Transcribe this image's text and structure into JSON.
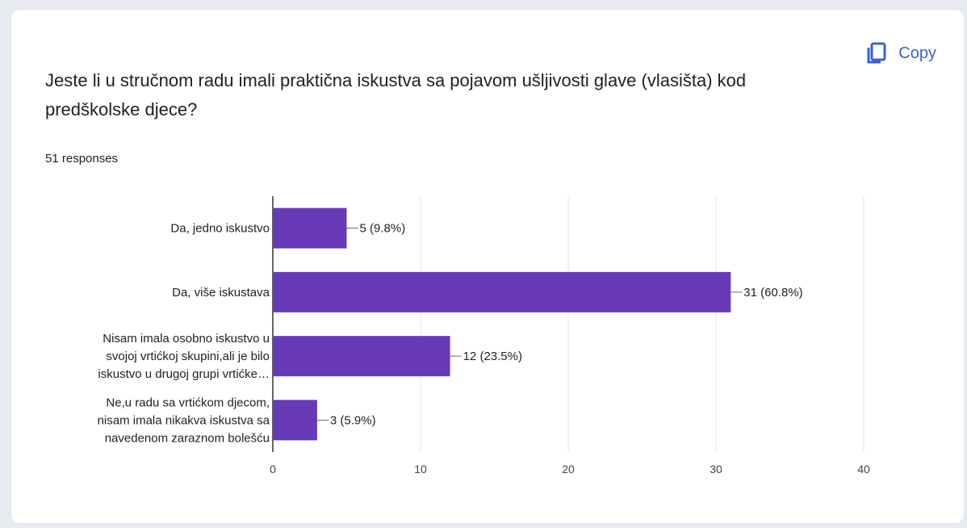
{
  "question": {
    "title": "Jeste li u stručnom radu imali praktična iskustva sa pojavom ušljivosti glave (vlasišta) kod predškolske djece?",
    "responses": "51 responses"
  },
  "toolbar": {
    "copy_label": "Copy",
    "copy_icon": "copy-icon"
  },
  "colors": {
    "bar": "#673ab7",
    "accent": "#3b5fd9"
  },
  "chart_data": {
    "type": "bar",
    "orientation": "horizontal",
    "categories": [
      [
        "Da, jedno iskustvo"
      ],
      [
        "Da, više iskustava"
      ],
      [
        "Nisam imala osobno iskustvo u",
        "svojoj vrtićkoj skupini,ali je bilo",
        "iskustvo u drugoj grupi vrtićke…"
      ],
      [
        "Ne,u radu sa vrtićkom djecom,",
        "nisam imala nikakva iskustva sa",
        "navedenom zaraznom bolešću"
      ]
    ],
    "values": [
      5,
      31,
      12,
      3
    ],
    "data_labels": [
      "5 (9.8%)",
      "31 (60.8%)",
      "12 (23.5%)",
      "3 (5.9%)"
    ],
    "xticks": [
      "0",
      "10",
      "20",
      "30",
      "40"
    ],
    "xlim": [
      0,
      40
    ],
    "grid": true
  }
}
